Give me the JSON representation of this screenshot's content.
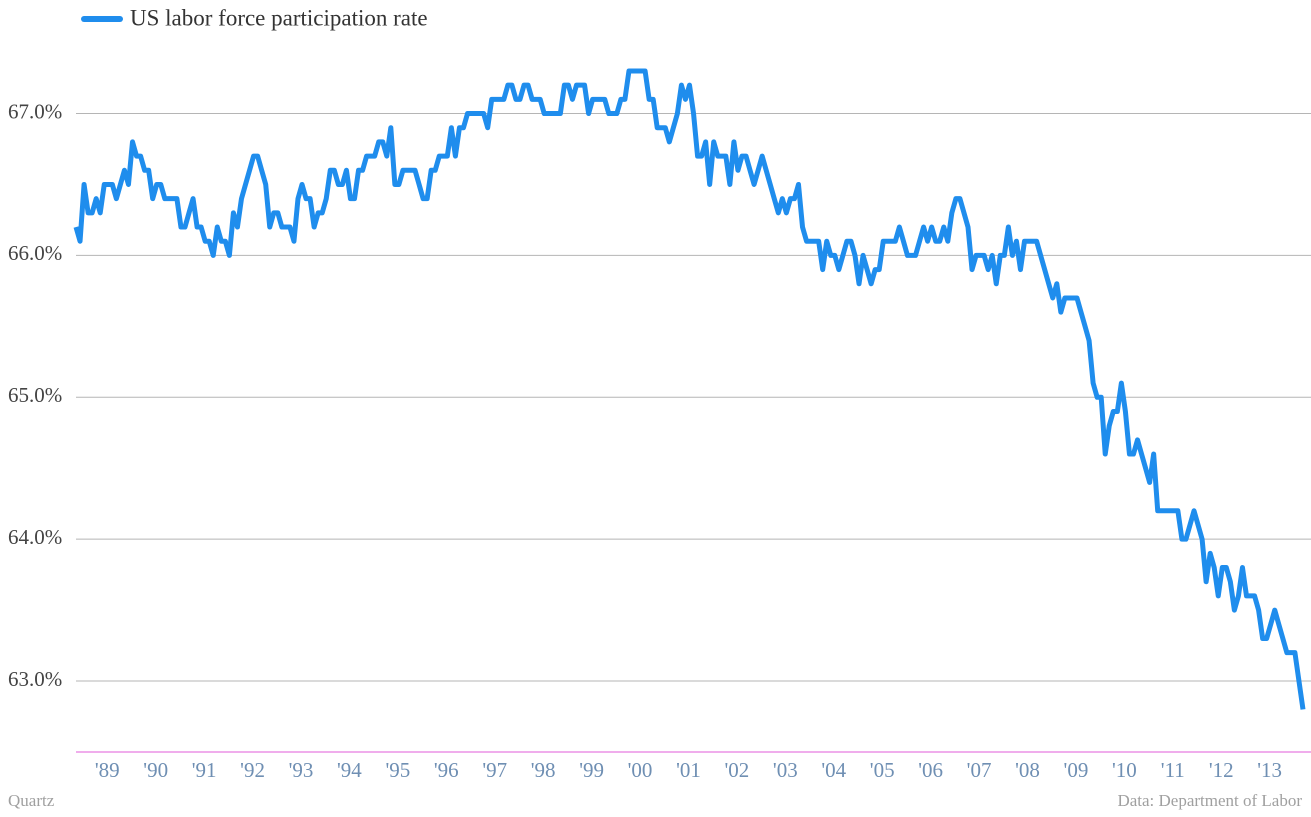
{
  "chart_data": {
    "type": "line",
    "series": [
      {
        "name": "US labor force participation rate",
        "color": "#1f8ded",
        "values": [
          66.2,
          66.1,
          66.5,
          66.3,
          66.3,
          66.4,
          66.3,
          66.5,
          66.5,
          66.5,
          66.4,
          66.5,
          66.6,
          66.5,
          66.8,
          66.7,
          66.7,
          66.6,
          66.6,
          66.4,
          66.5,
          66.5,
          66.4,
          66.4,
          66.4,
          66.4,
          66.2,
          66.2,
          66.3,
          66.4,
          66.2,
          66.2,
          66.1,
          66.1,
          66.0,
          66.2,
          66.1,
          66.1,
          66.0,
          66.3,
          66.2,
          66.4,
          66.5,
          66.6,
          66.7,
          66.7,
          66.6,
          66.5,
          66.2,
          66.3,
          66.3,
          66.2,
          66.2,
          66.2,
          66.1,
          66.4,
          66.5,
          66.4,
          66.4,
          66.2,
          66.3,
          66.3,
          66.4,
          66.6,
          66.6,
          66.5,
          66.5,
          66.6,
          66.4,
          66.4,
          66.6,
          66.6,
          66.7,
          66.7,
          66.7,
          66.8,
          66.8,
          66.7,
          66.9,
          66.5,
          66.5,
          66.6,
          66.6,
          66.6,
          66.6,
          66.5,
          66.4,
          66.4,
          66.6,
          66.6,
          66.7,
          66.7,
          66.7,
          66.9,
          66.7,
          66.9,
          66.9,
          67.0,
          67.0,
          67.0,
          67.0,
          67.0,
          66.9,
          67.1,
          67.1,
          67.1,
          67.1,
          67.2,
          67.2,
          67.1,
          67.1,
          67.2,
          67.2,
          67.1,
          67.1,
          67.1,
          67.0,
          67.0,
          67.0,
          67.0,
          67.0,
          67.2,
          67.2,
          67.1,
          67.2,
          67.2,
          67.2,
          67.0,
          67.1,
          67.1,
          67.1,
          67.1,
          67.0,
          67.0,
          67.0,
          67.1,
          67.1,
          67.3,
          67.3,
          67.3,
          67.3,
          67.3,
          67.1,
          67.1,
          66.9,
          66.9,
          66.9,
          66.8,
          66.9,
          67.0,
          67.2,
          67.1,
          67.2,
          67.0,
          66.7,
          66.7,
          66.8,
          66.5,
          66.8,
          66.7,
          66.7,
          66.7,
          66.5,
          66.8,
          66.6,
          66.7,
          66.7,
          66.6,
          66.5,
          66.6,
          66.7,
          66.6,
          66.5,
          66.4,
          66.3,
          66.4,
          66.3,
          66.4,
          66.4,
          66.5,
          66.2,
          66.1,
          66.1,
          66.1,
          66.1,
          65.9,
          66.1,
          66.0,
          66.0,
          65.9,
          66.0,
          66.1,
          66.1,
          66.0,
          65.8,
          66.0,
          65.9,
          65.8,
          65.9,
          65.9,
          66.1,
          66.1,
          66.1,
          66.1,
          66.2,
          66.1,
          66.0,
          66.0,
          66.0,
          66.1,
          66.2,
          66.1,
          66.2,
          66.1,
          66.1,
          66.2,
          66.1,
          66.3,
          66.4,
          66.4,
          66.3,
          66.2,
          65.9,
          66.0,
          66.0,
          66.0,
          65.9,
          66.0,
          65.8,
          66.0,
          66.0,
          66.2,
          66.0,
          66.1,
          65.9,
          66.1,
          66.1,
          66.1,
          66.1,
          66.0,
          65.9,
          65.8,
          65.7,
          65.8,
          65.6,
          65.7,
          65.7,
          65.7,
          65.7,
          65.6,
          65.5,
          65.4,
          65.1,
          65.0,
          65.0,
          64.6,
          64.8,
          64.9,
          64.9,
          65.1,
          64.9,
          64.6,
          64.6,
          64.7,
          64.6,
          64.5,
          64.4,
          64.6,
          64.2,
          64.2,
          64.2,
          64.2,
          64.2,
          64.2,
          64.0,
          64.0,
          64.1,
          64.2,
          64.1,
          64.0,
          63.7,
          63.9,
          63.8,
          63.6,
          63.8,
          63.8,
          63.7,
          63.5,
          63.6,
          63.8,
          63.6,
          63.6,
          63.6,
          63.5,
          63.3,
          63.3,
          63.4,
          63.5,
          63.4,
          63.3,
          63.2,
          63.2,
          63.2,
          63.0,
          62.8
        ]
      }
    ],
    "categories": [
      null,
      null,
      null,
      null,
      null,
      null,
      null,
      "'89",
      null,
      null,
      null,
      null,
      null,
      null,
      null,
      null,
      null,
      null,
      null,
      "'90",
      null,
      null,
      null,
      null,
      null,
      null,
      null,
      null,
      null,
      null,
      null,
      "'91",
      null,
      null,
      null,
      null,
      null,
      null,
      null,
      null,
      null,
      null,
      null,
      "'92",
      null,
      null,
      null,
      null,
      null,
      null,
      null,
      null,
      null,
      null,
      null,
      "'93",
      null,
      null,
      null,
      null,
      null,
      null,
      null,
      null,
      null,
      null,
      null,
      "'94",
      null,
      null,
      null,
      null,
      null,
      null,
      null,
      null,
      null,
      null,
      null,
      "'95",
      null,
      null,
      null,
      null,
      null,
      null,
      null,
      null,
      null,
      null,
      null,
      "'96",
      null,
      null,
      null,
      null,
      null,
      null,
      null,
      null,
      null,
      null,
      null,
      "'97",
      null,
      null,
      null,
      null,
      null,
      null,
      null,
      null,
      null,
      null,
      null,
      "'98",
      null,
      null,
      null,
      null,
      null,
      null,
      null,
      null,
      null,
      null,
      null,
      "'99",
      null,
      null,
      null,
      null,
      null,
      null,
      null,
      null,
      null,
      null,
      null,
      "'00",
      null,
      null,
      null,
      null,
      null,
      null,
      null,
      null,
      null,
      null,
      null,
      "'01",
      null,
      null,
      null,
      null,
      null,
      null,
      null,
      null,
      null,
      null,
      null,
      "'02",
      null,
      null,
      null,
      null,
      null,
      null,
      null,
      null,
      null,
      null,
      null,
      "'03",
      null,
      null,
      null,
      null,
      null,
      null,
      null,
      null,
      null,
      null,
      null,
      "'04",
      null,
      null,
      null,
      null,
      null,
      null,
      null,
      null,
      null,
      null,
      null,
      "'05",
      null,
      null,
      null,
      null,
      null,
      null,
      null,
      null,
      null,
      null,
      null,
      "'06",
      null,
      null,
      null,
      null,
      null,
      null,
      null,
      null,
      null,
      null,
      null,
      "'07",
      null,
      null,
      null,
      null,
      null,
      null,
      null,
      null,
      null,
      null,
      null,
      "'08",
      null,
      null,
      null,
      null,
      null,
      null,
      null,
      null,
      null,
      null,
      null,
      "'09",
      null,
      null,
      null,
      null,
      null,
      null,
      null,
      null,
      null,
      null,
      null,
      "'10",
      null,
      null,
      null,
      null,
      null,
      null,
      null,
      null,
      null,
      null,
      null,
      "'11",
      null,
      null,
      null,
      null,
      null,
      null,
      null,
      null,
      null,
      null,
      null,
      "'12",
      null,
      null,
      null,
      null,
      null,
      null,
      null,
      null,
      null,
      null,
      null,
      "'13",
      null,
      null,
      null,
      null,
      null,
      null,
      null,
      null,
      null
    ],
    "ylim": [
      62.5,
      67.8
    ],
    "yticks": [
      {
        "value": 63,
        "label": "63.0%"
      },
      {
        "value": 64,
        "label": "64.0%"
      },
      {
        "value": 65,
        "label": "65.0%"
      },
      {
        "value": 66,
        "label": "66.0%"
      },
      {
        "value": 67,
        "label": "67.0%"
      }
    ],
    "grid": true,
    "source": "Data: Department of Labor",
    "credit": "Quartz"
  }
}
